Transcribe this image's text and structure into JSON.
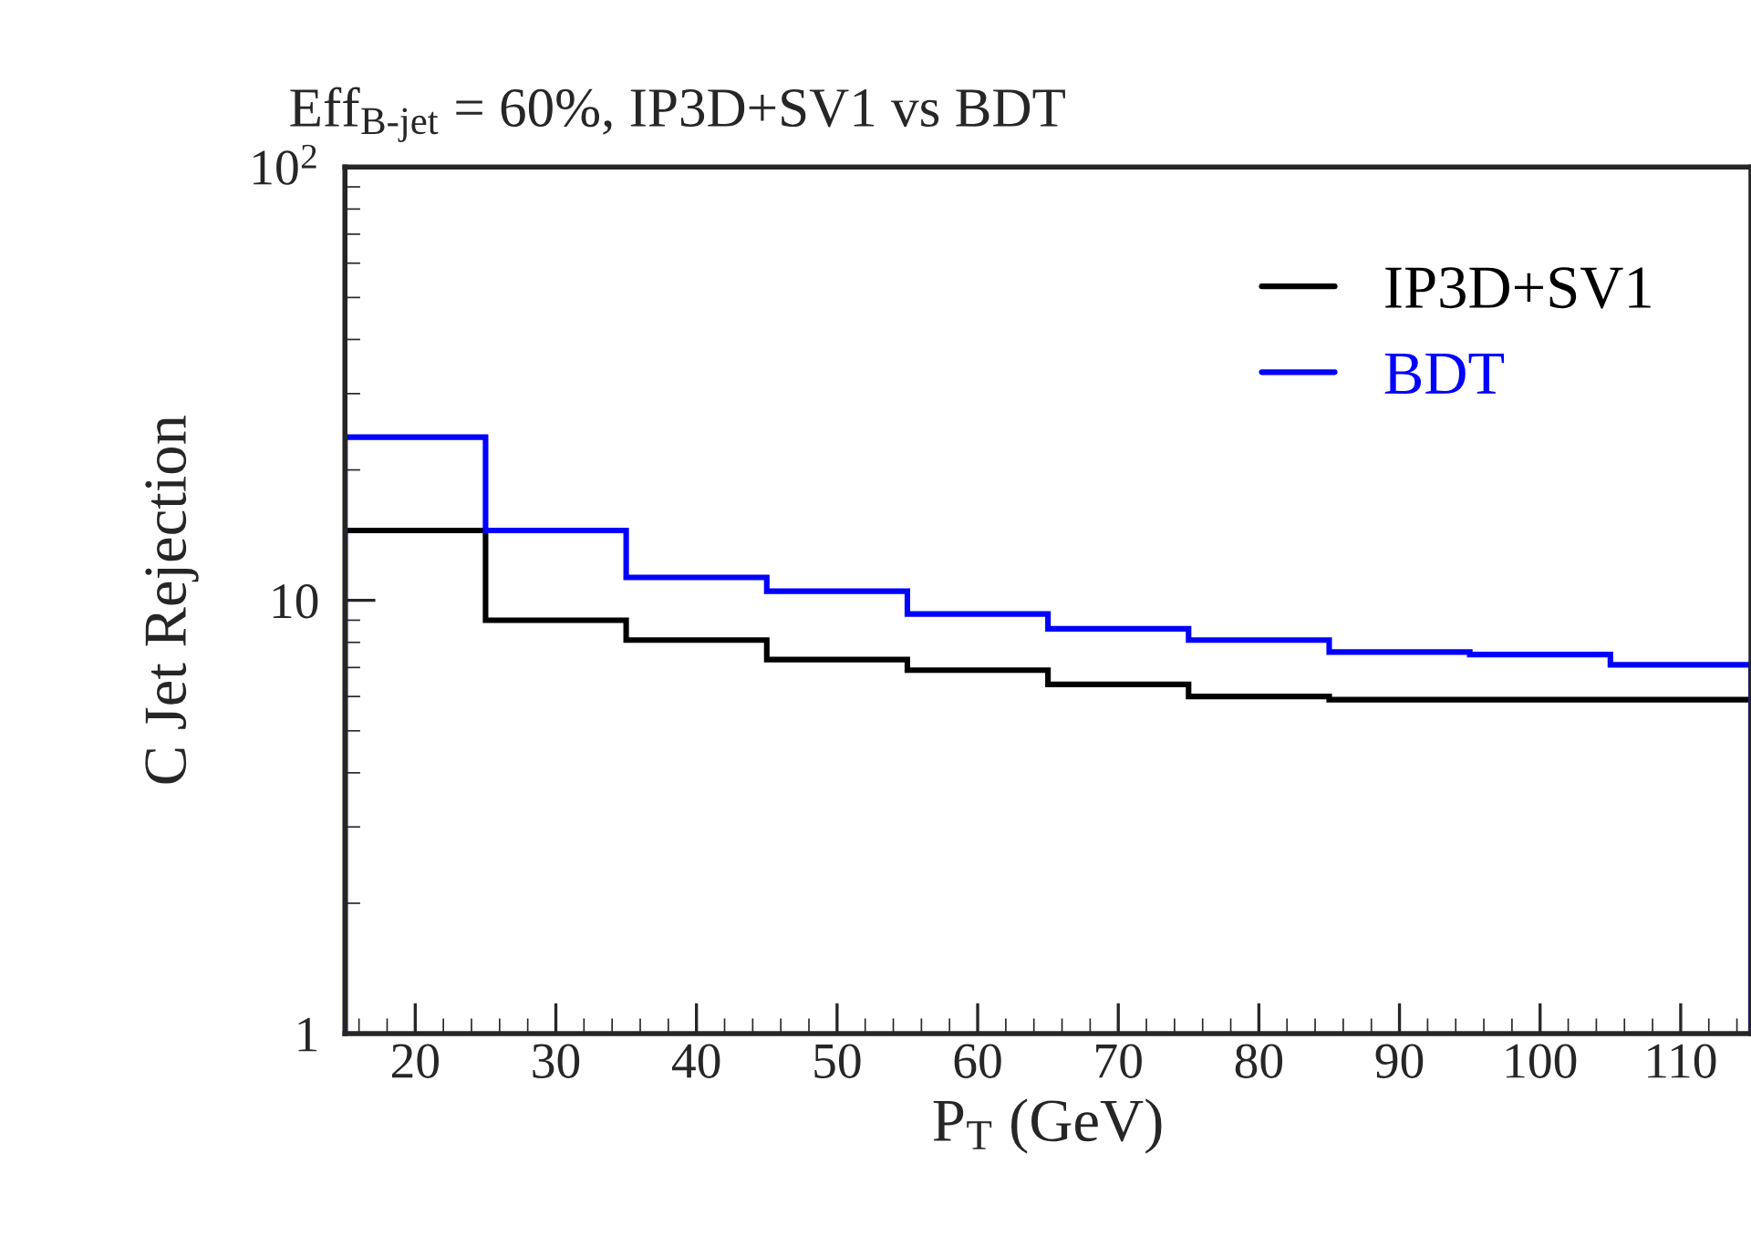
{
  "chart_data": {
    "type": "histogram",
    "title": "Eff$_{B-jet}$ = 60%, IP3D+SV1 vs BDT",
    "xlabel": "P$_{T}$ (GeV)",
    "ylabel": "C Jet Rejection",
    "bins": [
      15,
      25,
      35,
      45,
      55,
      65,
      75,
      85,
      95,
      105,
      115
    ],
    "series": [
      {
        "name": "IP3D+SV1",
        "color": "#000000",
        "values": [
          14.5,
          9.0,
          8.1,
          7.3,
          6.9,
          6.4,
          6.0,
          5.9,
          5.9,
          5.9
        ]
      },
      {
        "name": "BDT",
        "color": "#0000ff",
        "values": [
          23.8,
          14.5,
          11.3,
          10.5,
          9.3,
          8.6,
          8.1,
          7.6,
          7.5,
          7.1
        ]
      }
    ],
    "log": "y",
    "xlim": [
      15,
      115
    ],
    "ylim": [
      1,
      100
    ],
    "xticks": [
      20,
      30,
      40,
      50,
      60,
      70,
      80,
      90,
      100,
      110
    ],
    "yticks": [
      1,
      10,
      {
        "value": 100,
        "label": "10$^{2}$"
      }
    ],
    "grid": false,
    "legend": "top right"
  }
}
